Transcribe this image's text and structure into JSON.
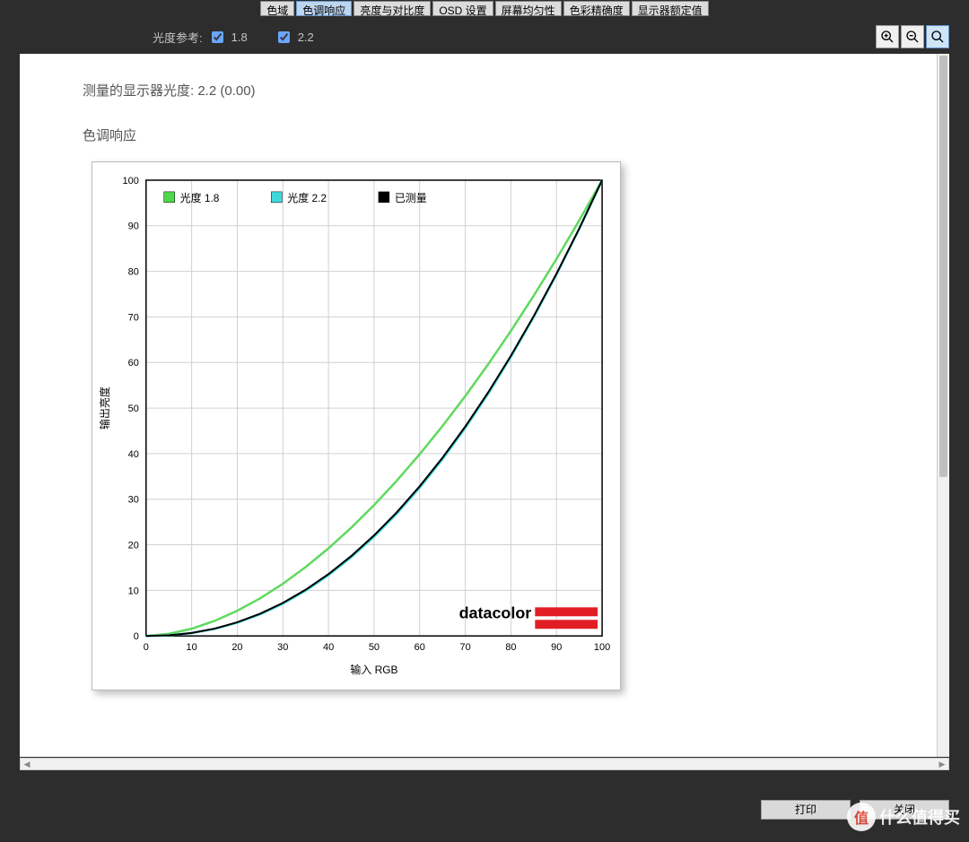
{
  "tabs": {
    "items": [
      "色域",
      "色调响应",
      "亮度与对比度",
      "OSD 设置",
      "屏幕均匀性",
      "色彩精确度",
      "显示器额定值"
    ],
    "active_index": 1
  },
  "toolbar": {
    "gamma_ref_label": "光度参考:",
    "cb1_label": "1.8",
    "cb1_checked": true,
    "cb2_label": "2.2",
    "cb2_checked": true
  },
  "report": {
    "measured_label": "测量的显示器光度:",
    "measured_value": "2.2 (0.00)",
    "section_title": "色调响应"
  },
  "chart": {
    "type": "line",
    "xlabel": "输入 RGB",
    "ylabel": "输出亮度",
    "xlim": [
      0,
      100
    ],
    "ylim": [
      0,
      100
    ],
    "tick_step": 10,
    "grid_color": "#d0d0d0",
    "axis_color": "#000000",
    "background_color": "#ffffff",
    "label_fontsize": 12,
    "tick_fontsize": 11,
    "legend": {
      "items": [
        {
          "label": "光度 1.8",
          "color": "#4dd84d"
        },
        {
          "label": "光度 2.2",
          "color": "#3dd9d9"
        },
        {
          "label": "已测量",
          "color": "#000000"
        }
      ]
    },
    "series": [
      {
        "name": "gamma18",
        "color": "#5ed95e",
        "line_width": 2.5,
        "gamma": 1.8,
        "points_x": [
          0,
          5,
          10,
          15,
          20,
          25,
          30,
          35,
          40,
          45,
          50,
          55,
          60,
          65,
          70,
          75,
          80,
          85,
          90,
          95,
          100
        ]
      },
      {
        "name": "gamma22",
        "color": "#3dd9d9",
        "line_width": 2.5,
        "gamma": 2.2,
        "points_x": [
          0,
          5,
          10,
          15,
          20,
          25,
          30,
          35,
          40,
          45,
          50,
          55,
          60,
          65,
          70,
          75,
          80,
          85,
          90,
          95,
          100
        ]
      },
      {
        "name": "measured",
        "color": "#000000",
        "line_width": 2,
        "gamma": 2.18,
        "points_x": [
          0,
          5,
          10,
          15,
          20,
          25,
          30,
          35,
          40,
          45,
          50,
          55,
          60,
          65,
          70,
          75,
          80,
          85,
          90,
          95,
          100
        ]
      }
    ],
    "brand": {
      "text": "datacolor",
      "text_color": "#000000",
      "bar_color": "#e21e25"
    }
  },
  "footer": {
    "print": "打印",
    "close": "关闭"
  },
  "watermark": {
    "circle_text": "值",
    "text": "什么值得买"
  }
}
